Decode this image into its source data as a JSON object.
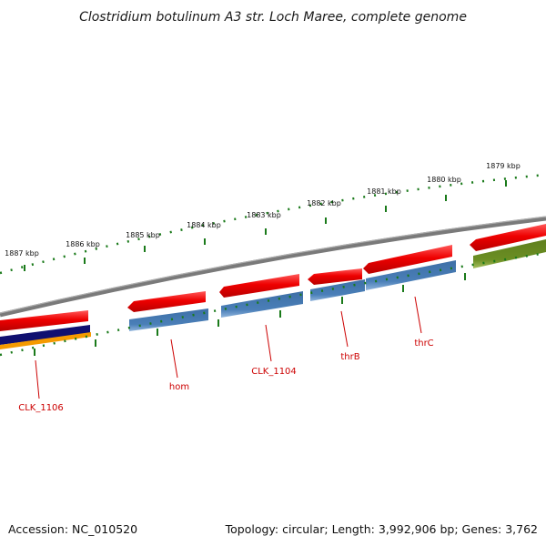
{
  "title": "Clostridium botulinum A3 str. Loch Maree, complete genome",
  "footer": {
    "accession": "Accession: NC_010520",
    "summary": "Topology: circular; Length: 3,992,906 bp; Genes: 3,762"
  },
  "scale_labels": [
    "1887 kbp",
    "1886 kbp",
    "1885 kbp",
    "1884 kbp",
    "1883 kbp",
    "1882 kbp",
    "1881 kbp",
    "1880 kbp",
    "1879 kbp"
  ],
  "gene_labels": [
    "CLK_1106",
    "hom",
    "CLK_1104",
    "thrB",
    "thrC"
  ],
  "colors": {
    "backbone": "#808080",
    "forward_gene": "#ee0000",
    "cds": "#4a7fb8",
    "rna": "#6b8e23",
    "tick": "#1a7a1a",
    "label": "#cc0000",
    "navy": "#101070",
    "orange": "#f59a00"
  }
}
